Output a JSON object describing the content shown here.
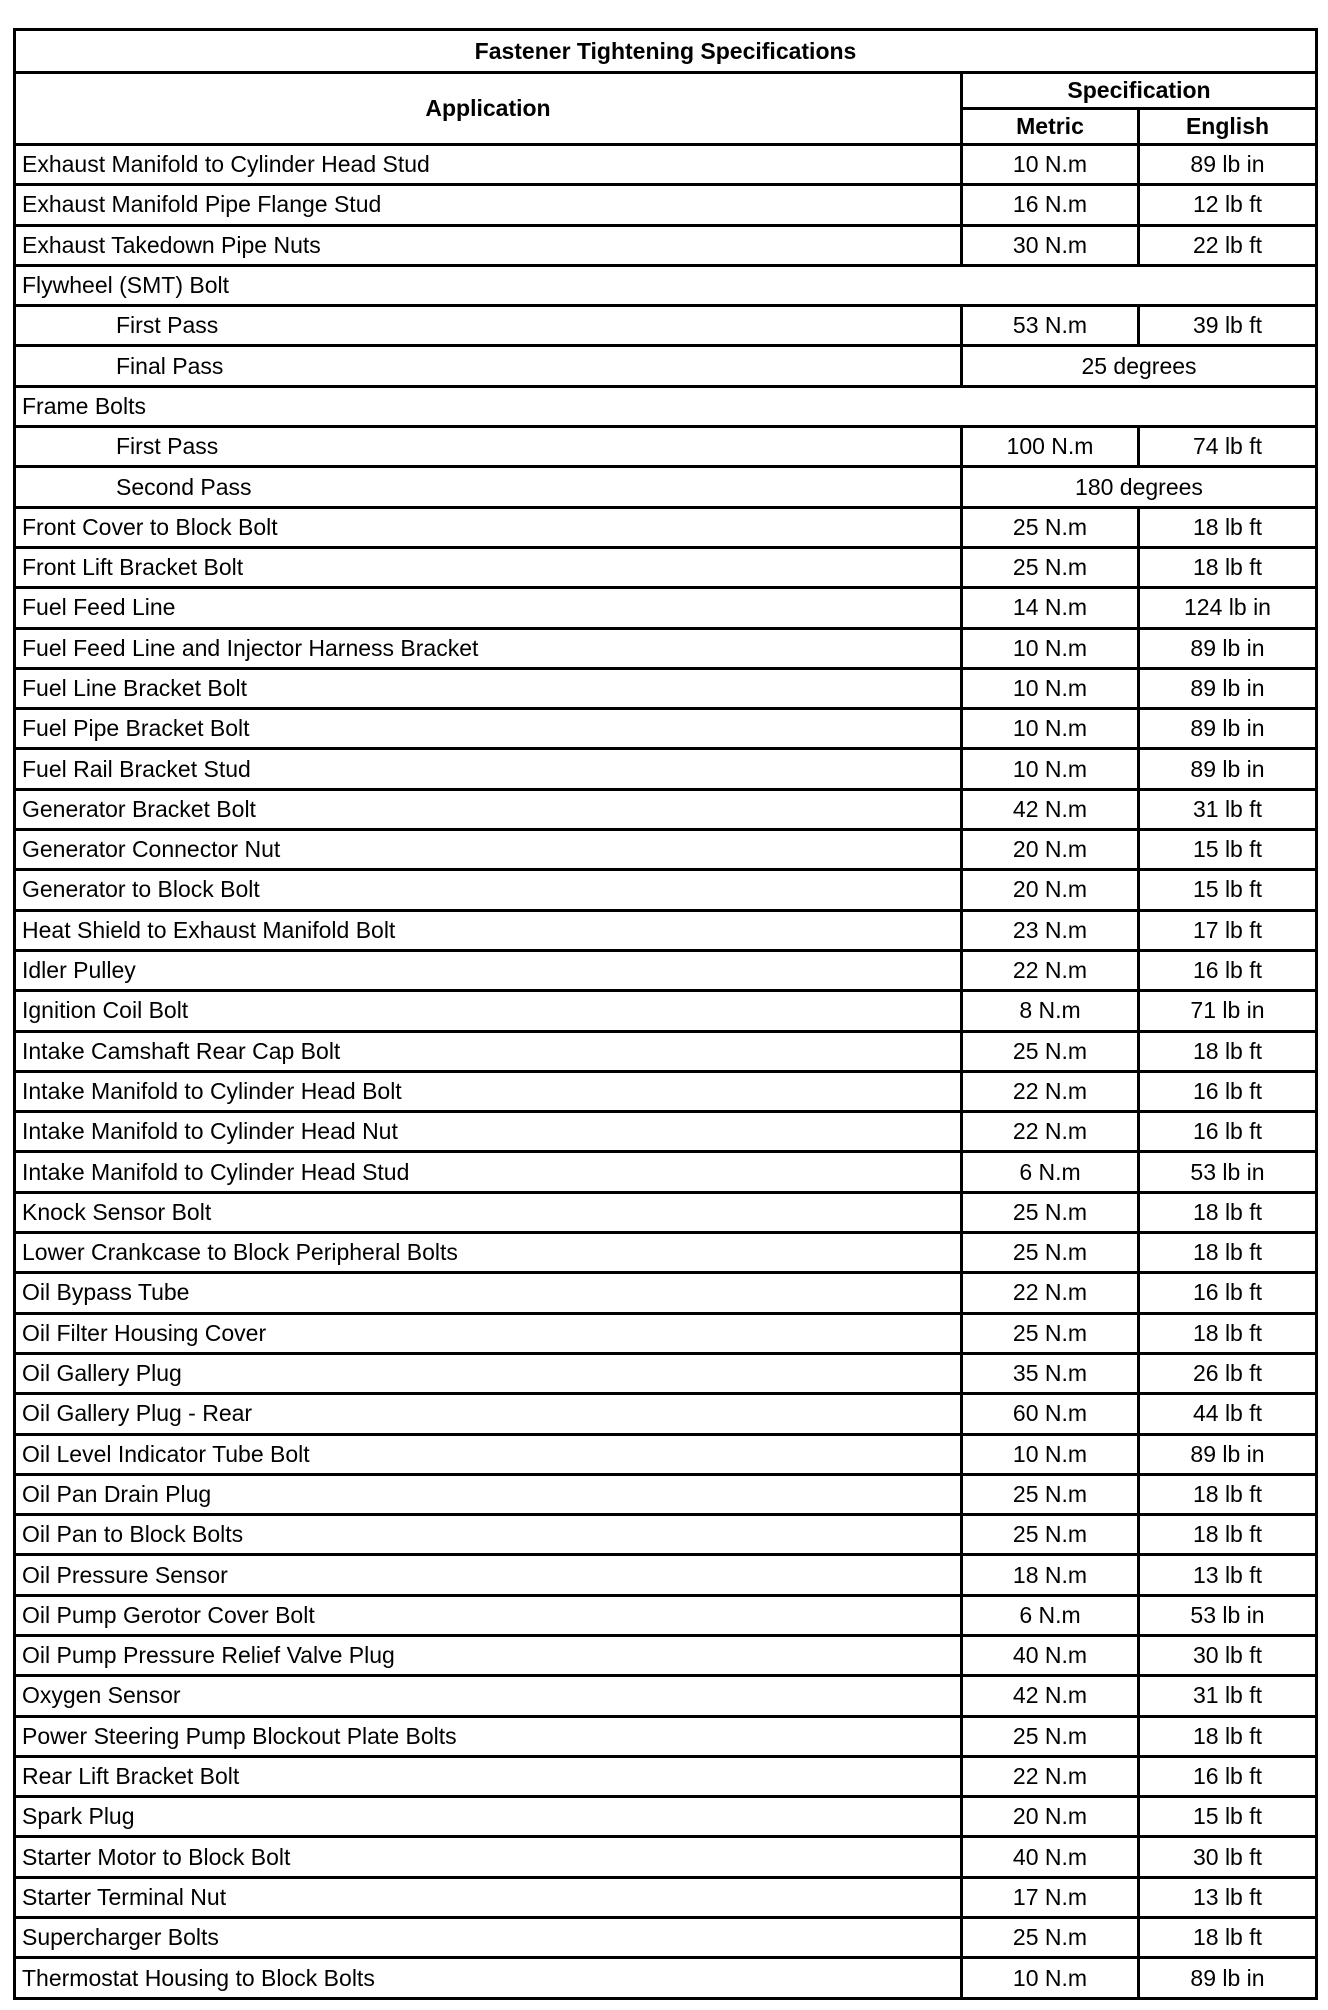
{
  "title": "Fastener Tightening Specifications",
  "headers": {
    "application": "Application",
    "specification": "Specification",
    "metric": "Metric",
    "english": "English"
  },
  "rows": [
    {
      "application": "Exhaust Manifold to Cylinder Head Stud",
      "metric": "10 N.m",
      "english": "89 lb in"
    },
    {
      "application": "Exhaust Manifold Pipe Flange Stud",
      "metric": "16 N.m",
      "english": "12 lb ft"
    },
    {
      "application": "Exhaust Takedown Pipe Nuts",
      "metric": "30 N.m",
      "english": "22 lb ft"
    },
    {
      "application": "Flywheel (SMT) Bolt",
      "section": true
    },
    {
      "application": "First Pass",
      "indent": true,
      "metric": "53 N.m",
      "english": "39 lb ft"
    },
    {
      "application": "Final Pass",
      "indent": true,
      "span": "25 degrees"
    },
    {
      "application": "Frame Bolts",
      "section": true
    },
    {
      "application": "First Pass",
      "indent": true,
      "metric": "100 N.m",
      "english": "74 lb ft"
    },
    {
      "application": "Second Pass",
      "indent": true,
      "span": "180 degrees"
    },
    {
      "application": "Front Cover to Block Bolt",
      "metric": "25 N.m",
      "english": "18 lb ft"
    },
    {
      "application": "Front Lift Bracket Bolt",
      "metric": "25 N.m",
      "english": "18 lb ft"
    },
    {
      "application": "Fuel Feed Line",
      "metric": "14 N.m",
      "english": "124 lb in"
    },
    {
      "application": "Fuel Feed Line and Injector Harness Bracket",
      "metric": "10 N.m",
      "english": "89 lb in"
    },
    {
      "application": "Fuel Line Bracket Bolt",
      "metric": "10 N.m",
      "english": "89 lb in"
    },
    {
      "application": "Fuel Pipe Bracket Bolt",
      "metric": "10 N.m",
      "english": "89 lb in"
    },
    {
      "application": "Fuel Rail Bracket Stud",
      "metric": "10 N.m",
      "english": "89 lb in"
    },
    {
      "application": "Generator Bracket Bolt",
      "metric": "42 N.m",
      "english": "31 lb ft"
    },
    {
      "application": "Generator Connector Nut",
      "metric": "20 N.m",
      "english": "15 lb ft"
    },
    {
      "application": "Generator to Block Bolt",
      "metric": "20 N.m",
      "english": "15 lb ft"
    },
    {
      "application": "Heat Shield to Exhaust Manifold Bolt",
      "metric": "23 N.m",
      "english": "17 lb ft"
    },
    {
      "application": "Idler Pulley",
      "metric": "22 N.m",
      "english": "16 lb ft"
    },
    {
      "application": "Ignition Coil Bolt",
      "metric": "8 N.m",
      "english": "71 lb in"
    },
    {
      "application": "Intake Camshaft Rear Cap Bolt",
      "metric": "25 N.m",
      "english": "18 lb ft"
    },
    {
      "application": "Intake Manifold to Cylinder Head Bolt",
      "metric": "22 N.m",
      "english": "16 lb ft"
    },
    {
      "application": "Intake Manifold to Cylinder Head Nut",
      "metric": "22 N.m",
      "english": "16 lb ft"
    },
    {
      "application": "Intake Manifold to Cylinder Head Stud",
      "metric": "6 N.m",
      "english": "53 lb in"
    },
    {
      "application": "Knock Sensor Bolt",
      "metric": "25 N.m",
      "english": "18 lb ft"
    },
    {
      "application": "Lower Crankcase to Block Peripheral Bolts",
      "metric": "25 N.m",
      "english": "18 lb ft"
    },
    {
      "application": "Oil Bypass Tube",
      "metric": "22 N.m",
      "english": "16 lb ft"
    },
    {
      "application": "Oil Filter Housing Cover",
      "metric": "25 N.m",
      "english": "18 lb ft"
    },
    {
      "application": "Oil Gallery Plug",
      "metric": "35 N.m",
      "english": "26 lb ft"
    },
    {
      "application": "Oil Gallery Plug - Rear",
      "metric": "60 N.m",
      "english": "44 lb ft"
    },
    {
      "application": "Oil Level Indicator Tube Bolt",
      "metric": "10 N.m",
      "english": "89 lb in"
    },
    {
      "application": "Oil Pan Drain Plug",
      "metric": "25 N.m",
      "english": "18 lb ft"
    },
    {
      "application": "Oil Pan to Block Bolts",
      "metric": "25 N.m",
      "english": "18 lb ft"
    },
    {
      "application": "Oil Pressure Sensor",
      "metric": "18 N.m",
      "english": "13 lb ft"
    },
    {
      "application": "Oil Pump Gerotor Cover Bolt",
      "metric": "6 N.m",
      "english": "53 lb in"
    },
    {
      "application": "Oil Pump Pressure Relief Valve Plug",
      "metric": "40 N.m",
      "english": "30 lb ft"
    },
    {
      "application": "Oxygen Sensor",
      "metric": "42 N.m",
      "english": "31 lb ft"
    },
    {
      "application": "Power Steering Pump Blockout Plate Bolts",
      "metric": "25 N.m",
      "english": "18 lb ft"
    },
    {
      "application": "Rear Lift Bracket Bolt",
      "metric": "22 N.m",
      "english": "16 lb ft"
    },
    {
      "application": "Spark Plug",
      "metric": "20 N.m",
      "english": "15 lb ft"
    },
    {
      "application": "Starter Motor to Block Bolt",
      "metric": "40 N.m",
      "english": "30 lb ft"
    },
    {
      "application": "Starter Terminal Nut",
      "metric": "17 N.m",
      "english": "13 lb ft"
    },
    {
      "application": "Supercharger Bolts",
      "metric": "25 N.m",
      "english": "18 lb ft"
    },
    {
      "application": "Thermostat Housing to Block Bolts",
      "metric": "10 N.m",
      "english": "89 lb in"
    }
  ]
}
